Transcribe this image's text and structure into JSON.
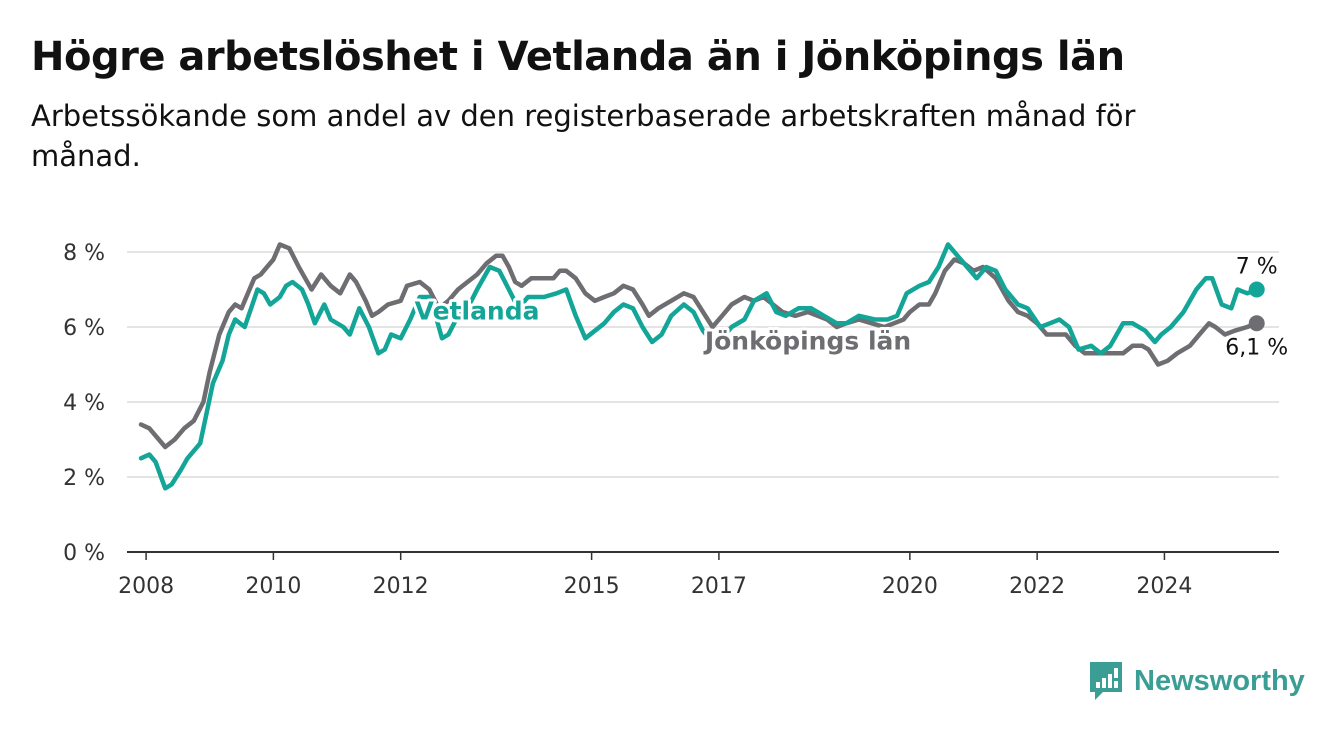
{
  "header": {
    "title": "Högre arbetslöshet i Vetlanda än i Jönköpings län",
    "subtitle": "Arbetssökande som andel av den registerbaserade arbetskraften månad för månad."
  },
  "brand": {
    "name": "Newsworthy",
    "icon": "newsworthy-logo-icon",
    "color": "#3a9e94"
  },
  "chart_data": {
    "type": "line",
    "ylim": [
      0,
      8.4
    ],
    "xlim": [
      2007.7,
      2025.8
    ],
    "y_ticks": [
      {
        "value": 0,
        "label": "0 %"
      },
      {
        "value": 2,
        "label": "2 %"
      },
      {
        "value": 4,
        "label": "4 %"
      },
      {
        "value": 6,
        "label": "6 %"
      },
      {
        "value": 8,
        "label": "8 %"
      }
    ],
    "x_ticks": [
      {
        "value": 2008,
        "label": "2008"
      },
      {
        "value": 2010,
        "label": "2010"
      },
      {
        "value": 2012,
        "label": "2012"
      },
      {
        "value": 2015,
        "label": "2015"
      },
      {
        "value": 2017,
        "label": "2017"
      },
      {
        "value": 2020,
        "label": "2020"
      },
      {
        "value": 2022,
        "label": "2022"
      },
      {
        "value": 2024,
        "label": "2024"
      }
    ],
    "grid": true,
    "series": [
      {
        "name": "Jönköpings län",
        "color": "#6e6d71",
        "end_label": "6,1 %",
        "points": [
          [
            2007.92,
            3.4
          ],
          [
            2008.05,
            3.3
          ],
          [
            2008.2,
            3.0
          ],
          [
            2008.3,
            2.8
          ],
          [
            2008.45,
            3.0
          ],
          [
            2008.6,
            3.3
          ],
          [
            2008.75,
            3.5
          ],
          [
            2008.9,
            4.0
          ],
          [
            2009.0,
            4.8
          ],
          [
            2009.15,
            5.8
          ],
          [
            2009.3,
            6.4
          ],
          [
            2009.4,
            6.6
          ],
          [
            2009.5,
            6.5
          ],
          [
            2009.6,
            6.9
          ],
          [
            2009.7,
            7.3
          ],
          [
            2009.8,
            7.4
          ],
          [
            2009.9,
            7.6
          ],
          [
            2010.0,
            7.8
          ],
          [
            2010.1,
            8.2
          ],
          [
            2010.25,
            8.1
          ],
          [
            2010.4,
            7.6
          ],
          [
            2010.5,
            7.3
          ],
          [
            2010.6,
            7.0
          ],
          [
            2010.75,
            7.4
          ],
          [
            2010.9,
            7.1
          ],
          [
            2011.05,
            6.9
          ],
          [
            2011.2,
            7.4
          ],
          [
            2011.3,
            7.2
          ],
          [
            2011.45,
            6.7
          ],
          [
            2011.55,
            6.3
          ],
          [
            2011.65,
            6.4
          ],
          [
            2011.8,
            6.6
          ],
          [
            2012.0,
            6.7
          ],
          [
            2012.1,
            7.1
          ],
          [
            2012.3,
            7.2
          ],
          [
            2012.45,
            7.0
          ],
          [
            2012.6,
            6.5
          ],
          [
            2012.75,
            6.7
          ],
          [
            2012.9,
            7.0
          ],
          [
            2013.05,
            7.2
          ],
          [
            2013.2,
            7.4
          ],
          [
            2013.35,
            7.7
          ],
          [
            2013.5,
            7.9
          ],
          [
            2013.6,
            7.9
          ],
          [
            2013.7,
            7.6
          ],
          [
            2013.8,
            7.2
          ],
          [
            2013.9,
            7.1
          ],
          [
            2014.05,
            7.3
          ],
          [
            2014.25,
            7.3
          ],
          [
            2014.4,
            7.3
          ],
          [
            2014.5,
            7.5
          ],
          [
            2014.6,
            7.5
          ],
          [
            2014.75,
            7.3
          ],
          [
            2014.9,
            6.9
          ],
          [
            2015.05,
            6.7
          ],
          [
            2015.2,
            6.8
          ],
          [
            2015.35,
            6.9
          ],
          [
            2015.5,
            7.1
          ],
          [
            2015.65,
            7.0
          ],
          [
            2015.8,
            6.6
          ],
          [
            2015.9,
            6.3
          ],
          [
            2016.05,
            6.5
          ],
          [
            2016.25,
            6.7
          ],
          [
            2016.45,
            6.9
          ],
          [
            2016.6,
            6.8
          ],
          [
            2016.75,
            6.4
          ],
          [
            2016.9,
            6.0
          ],
          [
            2017.05,
            6.3
          ],
          [
            2017.2,
            6.6
          ],
          [
            2017.4,
            6.8
          ],
          [
            2017.55,
            6.7
          ],
          [
            2017.7,
            6.8
          ],
          [
            2017.85,
            6.6
          ],
          [
            2018.0,
            6.4
          ],
          [
            2018.2,
            6.3
          ],
          [
            2018.4,
            6.4
          ],
          [
            2018.55,
            6.3
          ],
          [
            2018.7,
            6.2
          ],
          [
            2018.85,
            6.0
          ],
          [
            2019.0,
            6.1
          ],
          [
            2019.2,
            6.2
          ],
          [
            2019.4,
            6.1
          ],
          [
            2019.6,
            6.0
          ],
          [
            2019.75,
            6.1
          ],
          [
            2019.9,
            6.2
          ],
          [
            2020.0,
            6.4
          ],
          [
            2020.15,
            6.6
          ],
          [
            2020.3,
            6.6
          ],
          [
            2020.4,
            6.9
          ],
          [
            2020.55,
            7.5
          ],
          [
            2020.7,
            7.8
          ],
          [
            2020.85,
            7.7
          ],
          [
            2021.0,
            7.5
          ],
          [
            2021.15,
            7.6
          ],
          [
            2021.35,
            7.3
          ],
          [
            2021.55,
            6.7
          ],
          [
            2021.7,
            6.4
          ],
          [
            2021.85,
            6.3
          ],
          [
            2022.0,
            6.1
          ],
          [
            2022.15,
            5.8
          ],
          [
            2022.3,
            5.8
          ],
          [
            2022.45,
            5.8
          ],
          [
            2022.6,
            5.5
          ],
          [
            2022.75,
            5.3
          ],
          [
            2023.0,
            5.3
          ],
          [
            2023.2,
            5.3
          ],
          [
            2023.35,
            5.3
          ],
          [
            2023.5,
            5.5
          ],
          [
            2023.65,
            5.5
          ],
          [
            2023.75,
            5.4
          ],
          [
            2023.9,
            5.0
          ],
          [
            2024.05,
            5.1
          ],
          [
            2024.2,
            5.3
          ],
          [
            2024.4,
            5.5
          ],
          [
            2024.55,
            5.8
          ],
          [
            2024.7,
            6.1
          ],
          [
            2024.8,
            6.0
          ],
          [
            2024.95,
            5.8
          ],
          [
            2025.1,
            5.9
          ],
          [
            2025.3,
            6.0
          ],
          [
            2025.45,
            6.1
          ]
        ]
      },
      {
        "name": "Vetlanda",
        "color": "#13a597",
        "end_label": "7 %",
        "points": [
          [
            2007.92,
            2.5
          ],
          [
            2008.05,
            2.6
          ],
          [
            2008.15,
            2.4
          ],
          [
            2008.3,
            1.7
          ],
          [
            2008.4,
            1.8
          ],
          [
            2008.55,
            2.2
          ],
          [
            2008.65,
            2.5
          ],
          [
            2008.85,
            2.9
          ],
          [
            2009.05,
            4.5
          ],
          [
            2009.2,
            5.1
          ],
          [
            2009.3,
            5.8
          ],
          [
            2009.4,
            6.2
          ],
          [
            2009.55,
            6.0
          ],
          [
            2009.65,
            6.5
          ],
          [
            2009.75,
            7.0
          ],
          [
            2009.85,
            6.9
          ],
          [
            2009.95,
            6.6
          ],
          [
            2010.1,
            6.8
          ],
          [
            2010.2,
            7.1
          ],
          [
            2010.3,
            7.2
          ],
          [
            2010.45,
            7.0
          ],
          [
            2010.55,
            6.6
          ],
          [
            2010.65,
            6.1
          ],
          [
            2010.8,
            6.6
          ],
          [
            2010.9,
            6.2
          ],
          [
            2011.1,
            6.0
          ],
          [
            2011.2,
            5.8
          ],
          [
            2011.35,
            6.5
          ],
          [
            2011.5,
            6.0
          ],
          [
            2011.65,
            5.3
          ],
          [
            2011.75,
            5.4
          ],
          [
            2011.85,
            5.8
          ],
          [
            2012.0,
            5.7
          ],
          [
            2012.15,
            6.2
          ],
          [
            2012.3,
            6.8
          ],
          [
            2012.45,
            6.8
          ],
          [
            2012.55,
            6.3
          ],
          [
            2012.65,
            5.7
          ],
          [
            2012.75,
            5.8
          ],
          [
            2012.9,
            6.3
          ],
          [
            2013.05,
            6.5
          ],
          [
            2013.2,
            7.0
          ],
          [
            2013.4,
            7.6
          ],
          [
            2013.55,
            7.5
          ],
          [
            2013.7,
            7.0
          ],
          [
            2013.85,
            6.5
          ],
          [
            2014.0,
            6.8
          ],
          [
            2014.25,
            6.8
          ],
          [
            2014.45,
            6.9
          ],
          [
            2014.6,
            7.0
          ],
          [
            2014.75,
            6.3
          ],
          [
            2014.9,
            5.7
          ],
          [
            2015.05,
            5.9
          ],
          [
            2015.2,
            6.1
          ],
          [
            2015.35,
            6.4
          ],
          [
            2015.5,
            6.6
          ],
          [
            2015.65,
            6.5
          ],
          [
            2015.8,
            6.0
          ],
          [
            2015.95,
            5.6
          ],
          [
            2016.1,
            5.8
          ],
          [
            2016.25,
            6.3
          ],
          [
            2016.45,
            6.6
          ],
          [
            2016.6,
            6.4
          ],
          [
            2016.75,
            5.9
          ],
          [
            2016.9,
            5.6
          ],
          [
            2017.05,
            5.7
          ],
          [
            2017.2,
            6.0
          ],
          [
            2017.4,
            6.2
          ],
          [
            2017.55,
            6.7
          ],
          [
            2017.75,
            6.9
          ],
          [
            2017.9,
            6.4
          ],
          [
            2018.05,
            6.3
          ],
          [
            2018.25,
            6.5
          ],
          [
            2018.45,
            6.5
          ],
          [
            2018.65,
            6.3
          ],
          [
            2018.85,
            6.1
          ],
          [
            2019.0,
            6.1
          ],
          [
            2019.2,
            6.3
          ],
          [
            2019.45,
            6.2
          ],
          [
            2019.65,
            6.2
          ],
          [
            2019.8,
            6.3
          ],
          [
            2019.95,
            6.9
          ],
          [
            2020.15,
            7.1
          ],
          [
            2020.3,
            7.2
          ],
          [
            2020.45,
            7.6
          ],
          [
            2020.6,
            8.2
          ],
          [
            2020.75,
            7.9
          ],
          [
            2020.9,
            7.6
          ],
          [
            2021.05,
            7.3
          ],
          [
            2021.2,
            7.6
          ],
          [
            2021.35,
            7.5
          ],
          [
            2021.5,
            7.0
          ],
          [
            2021.7,
            6.6
          ],
          [
            2021.85,
            6.5
          ],
          [
            2022.05,
            6.0
          ],
          [
            2022.2,
            6.1
          ],
          [
            2022.35,
            6.2
          ],
          [
            2022.5,
            6.0
          ],
          [
            2022.65,
            5.4
          ],
          [
            2022.85,
            5.5
          ],
          [
            2023.0,
            5.3
          ],
          [
            2023.15,
            5.5
          ],
          [
            2023.35,
            6.1
          ],
          [
            2023.5,
            6.1
          ],
          [
            2023.7,
            5.9
          ],
          [
            2023.85,
            5.6
          ],
          [
            2023.95,
            5.8
          ],
          [
            2024.1,
            6.0
          ],
          [
            2024.3,
            6.4
          ],
          [
            2024.5,
            7.0
          ],
          [
            2024.65,
            7.3
          ],
          [
            2024.75,
            7.3
          ],
          [
            2024.9,
            6.6
          ],
          [
            2025.05,
            6.5
          ],
          [
            2025.15,
            7.0
          ],
          [
            2025.3,
            6.9
          ],
          [
            2025.45,
            7.0
          ]
        ]
      }
    ],
    "annotations": [
      {
        "series": "Vetlanda",
        "text": "Vetlanda",
        "x": 2013.2,
        "y": 6.2
      },
      {
        "series": "Jönköpings län",
        "text": "Jönköpings län",
        "x": 2018.4,
        "y": 5.4
      }
    ]
  }
}
